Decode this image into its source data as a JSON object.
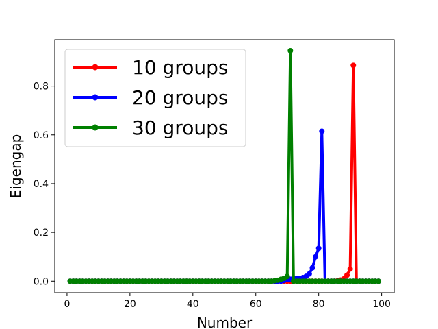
{
  "chart_data": {
    "type": "line",
    "title": "",
    "xlabel": "Number",
    "ylabel": "Eigengap",
    "xlim": [
      -3.9,
      104
    ],
    "ylim": [
      -0.047,
      0.99
    ],
    "xticks": [
      0,
      20,
      40,
      60,
      80,
      100
    ],
    "yticks": [
      0.0,
      0.2,
      0.4,
      0.6,
      0.8
    ],
    "ytick_labels": [
      "0.0",
      "0.2",
      "0.4",
      "0.6",
      "0.8"
    ],
    "grid": false,
    "legend_position": "top-left",
    "series": [
      {
        "name": "10 groups",
        "color": "#ff0000",
        "x_start": 1,
        "values": [
          0,
          0,
          0,
          0,
          0,
          0,
          0,
          0,
          0,
          0,
          0,
          0,
          0,
          0,
          0,
          0,
          0,
          0,
          0,
          0,
          0,
          0,
          0,
          0,
          0,
          0,
          0,
          0,
          0,
          0,
          0,
          0,
          0,
          0,
          0,
          0,
          0,
          0,
          0,
          0,
          0,
          0,
          0,
          0,
          0,
          0,
          0,
          0,
          0,
          0,
          0,
          0,
          0,
          0,
          0,
          0,
          0,
          0,
          0,
          0,
          0,
          0,
          0,
          0,
          0,
          0,
          0,
          0,
          0,
          0,
          0,
          0,
          0,
          0,
          0,
          0,
          0,
          0,
          0,
          0,
          0,
          0,
          0,
          0,
          0,
          0.002,
          0.005,
          0.01,
          0.025,
          0.05,
          0.885,
          0,
          0,
          0,
          0,
          0,
          0,
          0,
          0
        ]
      },
      {
        "name": "20 groups",
        "color": "#0000ff",
        "x_start": 1,
        "values": [
          0,
          0,
          0,
          0,
          0,
          0,
          0,
          0,
          0,
          0,
          0,
          0,
          0,
          0,
          0,
          0,
          0,
          0,
          0,
          0,
          0,
          0,
          0,
          0,
          0,
          0,
          0,
          0,
          0,
          0,
          0,
          0,
          0,
          0,
          0,
          0,
          0,
          0,
          0,
          0,
          0,
          0,
          0,
          0,
          0,
          0,
          0,
          0,
          0,
          0,
          0,
          0,
          0,
          0,
          0,
          0,
          0,
          0,
          0,
          0,
          0,
          0,
          0,
          0,
          0,
          0,
          0,
          0,
          0.003,
          0.006,
          0.008,
          0.012,
          0.01,
          0.012,
          0.015,
          0.02,
          0.03,
          0.055,
          0.1,
          0.135,
          0.615,
          0,
          0,
          0,
          0,
          0,
          0,
          0,
          0,
          0,
          0,
          0,
          0,
          0,
          0,
          0,
          0,
          0,
          0
        ]
      },
      {
        "name": "30 groups",
        "color": "#008000",
        "x_start": 1,
        "values": [
          0,
          0,
          0,
          0,
          0,
          0,
          0,
          0,
          0,
          0,
          0,
          0,
          0,
          0,
          0,
          0,
          0,
          0,
          0,
          0,
          0,
          0,
          0,
          0,
          0,
          0,
          0,
          0,
          0,
          0,
          0,
          0,
          0,
          0,
          0,
          0,
          0,
          0,
          0,
          0,
          0,
          0,
          0,
          0,
          0,
          0,
          0,
          0,
          0,
          0,
          0,
          0,
          0,
          0,
          0,
          0,
          0,
          0,
          0,
          0,
          0,
          0,
          0,
          0,
          0,
          0.002,
          0.004,
          0.008,
          0.012,
          0.02,
          0.945,
          0,
          0,
          0,
          0,
          0,
          0,
          0,
          0,
          0,
          0,
          0,
          0,
          0,
          0,
          0,
          0,
          0,
          0,
          0,
          0,
          0,
          0,
          0,
          0,
          0,
          0,
          0,
          0
        ]
      }
    ]
  }
}
